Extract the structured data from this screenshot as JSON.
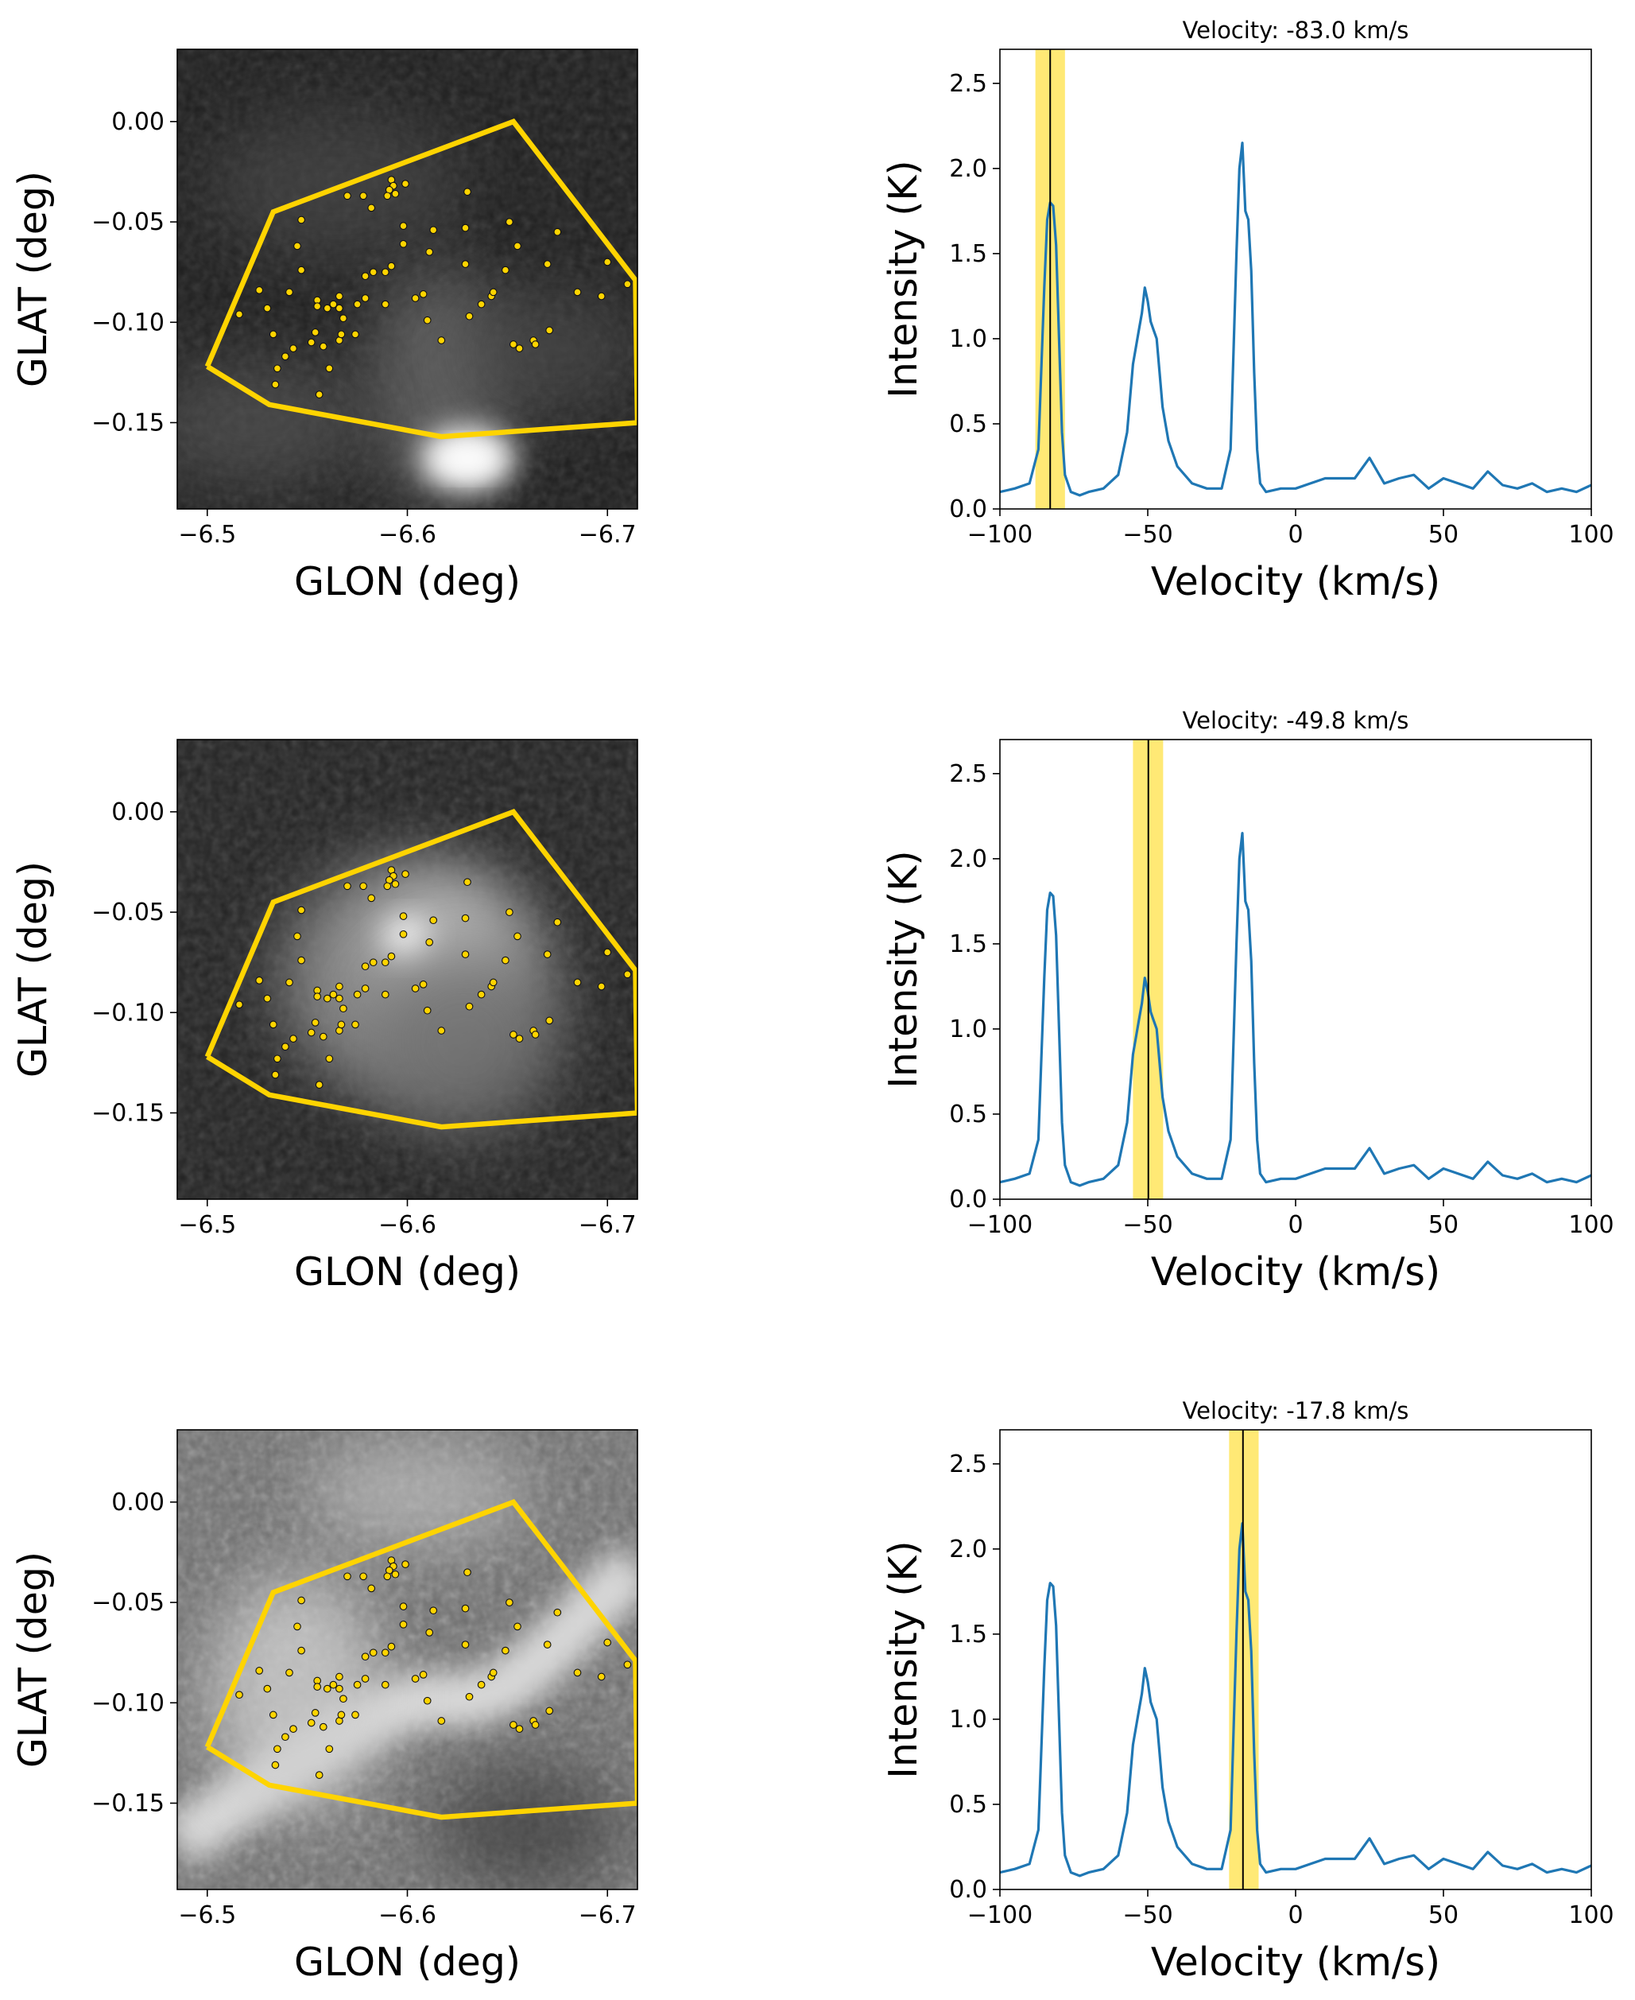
{
  "chart_data": {
    "type": "figure-grid",
    "rows": 3,
    "map_panels": [
      {
        "type": "heatmap",
        "xlabel": "GLON (deg)",
        "ylabel": "GLAT (deg)",
        "xlim": [
          -6.485,
          -6.715
        ],
        "ylim": [
          -0.193,
          0.036
        ],
        "xticks": [
          -6.5,
          -6.6,
          -6.7
        ],
        "xtick_labels": [
          "−6.5",
          "−6.6",
          "−6.7"
        ],
        "yticks": [
          0.0,
          -0.05,
          -0.1,
          -0.15
        ],
        "ytick_labels": [
          "0.00",
          "−0.05",
          "−0.10",
          "−0.15"
        ],
        "colormap": "gray",
        "background": "dark, bright compact source near (-6.62, -0.163) and faint emission below the polygon",
        "polygon_color": "#FFD400"
      },
      {
        "type": "heatmap",
        "xlabel": "GLON (deg)",
        "ylabel": "GLAT (deg)",
        "xlim": [
          -6.485,
          -6.715
        ],
        "ylim": [
          -0.193,
          0.036
        ],
        "xticks": [
          -6.5,
          -6.6,
          -6.7
        ],
        "xtick_labels": [
          "−6.5",
          "−6.6",
          "−6.7"
        ],
        "yticks": [
          0.0,
          -0.05,
          -0.1,
          -0.15
        ],
        "ytick_labels": [
          "0.00",
          "−0.05",
          "−0.10",
          "−0.15"
        ],
        "colormap": "gray",
        "background": "bright diffuse emission centred near (-6.61, -0.09)",
        "polygon_color": "#FFD400"
      },
      {
        "type": "heatmap",
        "xlabel": "GLON (deg)",
        "ylabel": "GLAT (deg)",
        "xlim": [
          -6.485,
          -6.715
        ],
        "ylim": [
          -0.193,
          0.036
        ],
        "xticks": [
          -6.5,
          -6.6,
          -6.7
        ],
        "xtick_labels": [
          "−6.5",
          "−6.6",
          "−6.7"
        ],
        "yticks": [
          0.0,
          -0.05,
          -0.1,
          -0.15
        ],
        "ytick_labels": [
          "0.00",
          "−0.05",
          "−0.10",
          "−0.15"
        ],
        "colormap": "gray",
        "background": "noisy widespread emission with bright filament",
        "polygon_color": "#FFD400"
      }
    ],
    "polygon": [
      [
        -6.5,
        -0.122
      ],
      [
        -6.531,
        -0.141
      ],
      [
        -6.617,
        -0.157
      ],
      [
        -6.715,
        -0.15
      ],
      [
        -6.714,
        -0.079
      ],
      [
        -6.653,
        0.0
      ],
      [
        -6.533,
        -0.045
      ],
      [
        -6.527,
        -0.059
      ],
      [
        -6.5,
        -0.122
      ]
    ],
    "sources": [
      [
        -6.592,
        -0.029
      ],
      [
        -6.593,
        -0.032
      ],
      [
        -6.591,
        -0.034
      ],
      [
        -6.594,
        -0.036
      ],
      [
        -6.59,
        -0.037
      ],
      [
        -6.599,
        -0.031
      ],
      [
        -6.578,
        -0.037
      ],
      [
        -6.582,
        -0.043
      ],
      [
        -6.63,
        -0.035
      ],
      [
        -6.651,
        -0.05
      ],
      [
        -6.547,
        -0.049
      ],
      [
        -6.57,
        -0.037
      ],
      [
        -6.598,
        -0.052
      ],
      [
        -6.613,
        -0.054
      ],
      [
        -6.629,
        -0.053
      ],
      [
        -6.655,
        -0.062
      ],
      [
        -6.675,
        -0.055
      ],
      [
        -6.7,
        -0.07
      ],
      [
        -6.71,
        -0.081
      ],
      [
        -6.697,
        -0.087
      ],
      [
        -6.685,
        -0.085
      ],
      [
        -6.67,
        -0.071
      ],
      [
        -6.649,
        -0.074
      ],
      [
        -6.629,
        -0.071
      ],
      [
        -6.611,
        -0.065
      ],
      [
        -6.598,
        -0.061
      ],
      [
        -6.592,
        -0.072
      ],
      [
        -6.589,
        -0.075
      ],
      [
        -6.583,
        -0.075
      ],
      [
        -6.579,
        -0.077
      ],
      [
        -6.589,
        -0.091
      ],
      [
        -6.604,
        -0.088
      ],
      [
        -6.608,
        -0.086
      ],
      [
        -6.61,
        -0.099
      ],
      [
        -6.617,
        -0.109
      ],
      [
        -6.631,
        -0.097
      ],
      [
        -6.637,
        -0.091
      ],
      [
        -6.642,
        -0.087
      ],
      [
        -6.643,
        -0.085
      ],
      [
        -6.653,
        -0.111
      ],
      [
        -6.656,
        -0.113
      ],
      [
        -6.663,
        -0.109
      ],
      [
        -6.664,
        -0.111
      ],
      [
        -6.671,
        -0.104
      ],
      [
        -6.545,
        -0.062
      ],
      [
        -6.547,
        -0.074
      ],
      [
        -6.541,
        -0.085
      ],
      [
        -6.555,
        -0.089
      ],
      [
        -6.555,
        -0.092
      ],
      [
        -6.56,
        -0.093
      ],
      [
        -6.563,
        -0.091
      ],
      [
        -6.566,
        -0.087
      ],
      [
        -6.566,
        -0.093
      ],
      [
        -6.568,
        -0.098
      ],
      [
        -6.579,
        -0.088
      ],
      [
        -6.574,
        -0.106
      ],
      [
        -6.566,
        -0.109
      ],
      [
        -6.558,
        -0.112
      ],
      [
        -6.552,
        -0.11
      ],
      [
        -6.554,
        -0.105
      ],
      [
        -6.543,
        -0.113
      ],
      [
        -6.533,
        -0.106
      ],
      [
        -6.53,
        -0.093
      ],
      [
        -6.516,
        -0.096
      ],
      [
        -6.526,
        -0.084
      ],
      [
        -6.539,
        -0.117
      ],
      [
        -6.535,
        -0.123
      ],
      [
        -6.534,
        -0.131
      ],
      [
        -6.561,
        -0.123
      ],
      [
        -6.556,
        -0.136
      ],
      [
        -6.567,
        -0.106
      ],
      [
        -6.575,
        -0.091
      ]
    ],
    "spectra": [
      {
        "type": "line",
        "title": "Velocity: -83.0 km/s",
        "xlabel": "Velocity (km/s)",
        "ylabel": "Intensity (K)",
        "xlim": [
          -100,
          100
        ],
        "ylim": [
          0,
          2.7
        ],
        "xticks": [
          -100,
          -50,
          0,
          50,
          100
        ],
        "xtick_labels": [
          "−100",
          "−50",
          "0",
          "50",
          "100"
        ],
        "yticks": [
          0.0,
          0.5,
          1.0,
          1.5,
          2.0,
          2.5
        ],
        "ytick_labels": [
          "0.0",
          "0.5",
          "1.0",
          "1.5",
          "2.0",
          "2.5"
        ],
        "marker_velocity": -83.0,
        "band": [
          -88.0,
          -78.0
        ],
        "band_color": "#FFE766",
        "line_color": "#1F77B4"
      },
      {
        "type": "line",
        "title": "Velocity: -49.8 km/s",
        "xlabel": "Velocity (km/s)",
        "ylabel": "Intensity (K)",
        "xlim": [
          -100,
          100
        ],
        "ylim": [
          0,
          2.7
        ],
        "xticks": [
          -100,
          -50,
          0,
          50,
          100
        ],
        "xtick_labels": [
          "−100",
          "−50",
          "0",
          "50",
          "100"
        ],
        "yticks": [
          0.0,
          0.5,
          1.0,
          1.5,
          2.0,
          2.5
        ],
        "ytick_labels": [
          "0.0",
          "0.5",
          "1.0",
          "1.5",
          "2.0",
          "2.5"
        ],
        "marker_velocity": -49.8,
        "band": [
          -55.0,
          -44.8
        ],
        "band_color": "#FFE766",
        "line_color": "#1F77B4"
      },
      {
        "type": "line",
        "title": "Velocity: -17.8 km/s",
        "xlabel": "Velocity (km/s)",
        "ylabel": "Intensity (K)",
        "xlim": [
          -100,
          100
        ],
        "ylim": [
          0,
          2.7
        ],
        "xticks": [
          -100,
          -50,
          0,
          50,
          100
        ],
        "xtick_labels": [
          "−100",
          "−50",
          "0",
          "50",
          "100"
        ],
        "yticks": [
          0.0,
          0.5,
          1.0,
          1.5,
          2.0,
          2.5
        ],
        "ytick_labels": [
          "0.0",
          "0.5",
          "1.0",
          "1.5",
          "2.0",
          "2.5"
        ],
        "marker_velocity": -17.8,
        "band": [
          -22.5,
          -12.5
        ],
        "band_color": "#FFE766",
        "line_color": "#1F77B4"
      }
    ],
    "spectrum": {
      "velocity": [
        -100,
        -95,
        -90,
        -87,
        -85,
        -84,
        -83,
        -82,
        -81,
        -80,
        -79,
        -78,
        -76,
        -73,
        -70,
        -65,
        -60,
        -57,
        -55,
        -53,
        -52,
        -51,
        -50,
        -49,
        -48,
        -47,
        -46,
        -45,
        -43,
        -40,
        -35,
        -30,
        -25,
        -22,
        -20,
        -19,
        -18,
        -17,
        -16,
        -15,
        -14,
        -13,
        -12,
        -10,
        -5,
        0,
        5,
        10,
        20,
        25,
        30,
        35,
        40,
        45,
        50,
        55,
        60,
        65,
        70,
        75,
        80,
        85,
        90,
        95,
        100
      ],
      "intensity": [
        0.1,
        0.12,
        0.15,
        0.35,
        1.3,
        1.7,
        1.8,
        1.78,
        1.55,
        1.0,
        0.45,
        0.2,
        0.1,
        0.08,
        0.1,
        0.12,
        0.2,
        0.45,
        0.85,
        1.05,
        1.15,
        1.3,
        1.22,
        1.1,
        1.05,
        1.0,
        0.8,
        0.6,
        0.4,
        0.25,
        0.15,
        0.12,
        0.12,
        0.35,
        1.5,
        2.0,
        2.15,
        1.75,
        1.7,
        1.4,
        0.8,
        0.35,
        0.15,
        0.1,
        0.12,
        0.12,
        0.15,
        0.18,
        0.18,
        0.3,
        0.15,
        0.18,
        0.2,
        0.12,
        0.18,
        0.15,
        0.12,
        0.22,
        0.14,
        0.12,
        0.15,
        0.1,
        0.12,
        0.1,
        0.14
      ]
    }
  }
}
